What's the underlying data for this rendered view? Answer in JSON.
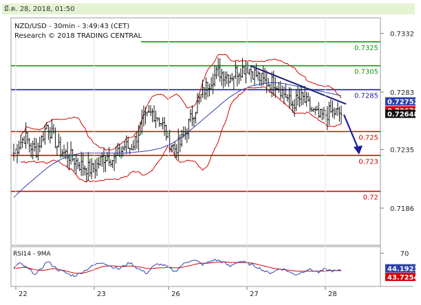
{
  "header": {
    "date_text": "มี.ค. 28, 2018, 01:50"
  },
  "chart_data": {
    "type": "candlestick",
    "title": "NZD/USD - 30min - 3:49:43 (CET)",
    "subtitle": "Research © 2018 TRADING CENTRAL",
    "ylim": [
      0.7155,
      0.7345
    ],
    "y_ticks": [
      {
        "value": 0.7332,
        "label": "0.7332"
      },
      {
        "value": 0.7283,
        "label": "0.7283"
      },
      {
        "value": 0.7235,
        "label": "0.7235"
      },
      {
        "value": 0.7186,
        "label": "0.7186"
      }
    ],
    "x_ticks": [
      "22",
      "23",
      "26",
      "27",
      "28"
    ],
    "levels": [
      {
        "value": 0.7325,
        "label": "0.7325",
        "color": "#1e8f1e"
      },
      {
        "value": 0.7305,
        "label": "0.7305",
        "color": "#1e8f1e"
      },
      {
        "value": 0.7285,
        "label": "0.7285",
        "color": "#1c1c9c"
      },
      {
        "value": 0.725,
        "label": "0.725",
        "color": "#d40000"
      },
      {
        "value": 0.723,
        "label": "0.723",
        "color": "#d40000"
      },
      {
        "value": 0.72,
        "label": "0.72",
        "color": "#d40000"
      }
    ],
    "price_tags": [
      {
        "value": 0.72752,
        "label": "0.72752",
        "color": "#2a3fa8"
      },
      {
        "value": 0.72678,
        "label": "0.72678",
        "color": "#d40000"
      },
      {
        "value": 0.72648,
        "label": "0.72648",
        "color": "#111111"
      }
    ],
    "price_path": [
      0.7232,
      0.724,
      0.7246,
      0.7238,
      0.7234,
      0.7244,
      0.7256,
      0.7246,
      0.7236,
      0.7232,
      0.723,
      0.7226,
      0.7222,
      0.722,
      0.7218,
      0.7222,
      0.7228,
      0.723,
      0.7226,
      0.7232,
      0.7238,
      0.7236,
      0.7244,
      0.7256,
      0.7262,
      0.7266,
      0.7262,
      0.7254,
      0.7242,
      0.7236,
      0.724,
      0.725,
      0.7262,
      0.7272,
      0.7282,
      0.729,
      0.7296,
      0.73,
      0.7298,
      0.7296,
      0.73,
      0.7302,
      0.7304,
      0.73,
      0.7296,
      0.7292,
      0.729,
      0.7292,
      0.7286,
      0.728,
      0.7272,
      0.7276,
      0.7278,
      0.7272,
      0.7266,
      0.7262,
      0.7264,
      0.7266,
      0.7266,
      0.7265
    ],
    "ma_path": [
      0.7195,
      0.7204,
      0.7212,
      0.722,
      0.7226,
      0.723,
      0.7232,
      0.7232,
      0.7232,
      0.7232,
      0.7232,
      0.7233,
      0.7234,
      0.7236,
      0.724,
      0.7246,
      0.7254,
      0.7262,
      0.727,
      0.7278,
      0.7284,
      0.7288,
      0.729,
      0.7291,
      0.729,
      0.7288,
      0.7286,
      0.7284,
      0.7282,
      0.728
    ],
    "trendline": {
      "from": 0.7305,
      "to": 0.7273
    },
    "forecast_arrow": {
      "from": 0.7264,
      "to": 0.7232
    },
    "rsi": {
      "label": "RSI14 - 9MA",
      "ylim": [
        20,
        80
      ],
      "tick": {
        "value": 70,
        "label": "70"
      },
      "tags": [
        {
          "value": 44.1923,
          "label": "44.1923",
          "color": "#2a3fa8"
        },
        {
          "value": 43.7254,
          "label": "43.7254",
          "color": "#d40000"
        }
      ],
      "rsi_path": [
        48,
        55,
        50,
        44,
        38,
        47,
        58,
        52,
        45,
        42,
        38,
        36,
        40,
        45,
        50,
        54,
        57,
        52,
        49,
        46,
        52,
        56,
        49,
        44,
        40,
        49,
        54,
        52,
        48,
        42,
        50,
        56,
        60,
        58,
        53,
        56,
        60,
        59,
        55,
        50,
        56,
        58,
        55,
        52,
        49,
        44,
        40,
        43,
        47,
        45,
        40,
        38,
        42,
        46,
        44,
        41,
        46,
        44,
        43,
        44
      ],
      "ma_path": [
        47,
        48,
        49,
        47,
        45,
        44,
        45,
        47,
        46,
        44,
        42,
        40,
        40,
        41,
        44,
        47,
        50,
        51,
        51,
        50,
        50,
        51,
        50,
        49,
        47,
        47,
        48,
        48,
        49,
        48,
        48,
        50,
        52,
        54,
        55,
        55,
        56,
        57,
        57,
        56,
        56,
        56,
        56,
        55,
        53,
        51,
        49,
        47,
        46,
        45,
        44,
        43,
        43,
        43,
        43,
        43,
        43,
        44,
        44,
        43.7
      ]
    }
  }
}
